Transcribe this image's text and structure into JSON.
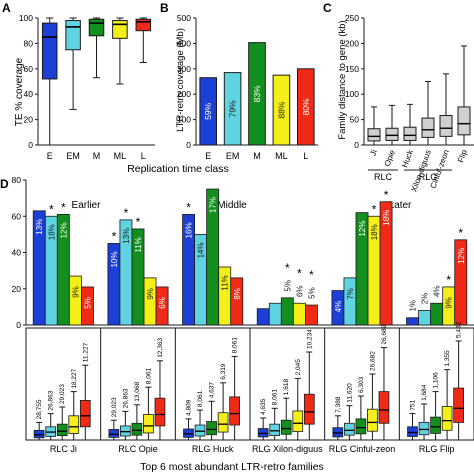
{
  "colors": {
    "E": "#1c3fd6",
    "EM": "#5fd3e0",
    "M": "#138f1f",
    "ML": "#f5ef19",
    "L": "#f02a16",
    "flank": "#d0d0d0",
    "ink": "#1a1a1a"
  },
  "chart_data": [
    {
      "panel": "A",
      "type": "box",
      "ylabel": "TE % coverage",
      "xlabel": "Replication time class",
      "ylim": [
        0,
        100
      ],
      "yticks": [
        0,
        20,
        40,
        60,
        80,
        100
      ],
      "categories": [
        "E",
        "EM",
        "M",
        "ML",
        "L"
      ],
      "boxes": [
        {
          "cat": "E",
          "whisker_low": 0,
          "q1": 52,
          "median": 85,
          "q3": 96,
          "whisker_high": 100
        },
        {
          "cat": "EM",
          "whisker_low": 28,
          "q1": 75,
          "median": 93,
          "q3": 98,
          "whisker_high": 100
        },
        {
          "cat": "M",
          "whisker_low": 53,
          "q1": 86,
          "median": 96,
          "q3": 99,
          "whisker_high": 100
        },
        {
          "cat": "ML",
          "whisker_low": 48,
          "q1": 84,
          "median": 95,
          "q3": 98,
          "whisker_high": 100
        },
        {
          "cat": "L",
          "whisker_low": 65,
          "q1": 90,
          "median": 97,
          "q3": 99,
          "whisker_high": 100
        }
      ]
    },
    {
      "panel": "B",
      "type": "bar",
      "ylabel": "LTR-retro coverage (Mb)",
      "ylim": [
        0,
        500
      ],
      "yticks": [
        0,
        100,
        200,
        300,
        400,
        500
      ],
      "categories": [
        "E",
        "EM",
        "M",
        "ML",
        "L"
      ],
      "values": [
        265,
        285,
        403,
        275,
        300
      ],
      "labels": [
        "59%",
        "79%",
        "83%",
        "88%",
        "80%"
      ]
    },
    {
      "panel": "C",
      "type": "box",
      "ylabel": "Family distance to gene (kb)",
      "ylim": [
        0,
        250
      ],
      "yticks": [
        0,
        50,
        100,
        150,
        200,
        250
      ],
      "categories": [
        "Ji",
        "Opie",
        "Huck",
        "Xilon-diguus",
        "Cinful-zeon",
        "Flip"
      ],
      "groups": [
        {
          "label": "RLC",
          "members": [
            "Ji",
            "Opie"
          ]
        },
        {
          "label": "RLG",
          "members": [
            "Huck",
            "Xilon-diguus",
            "Cinful-zeon"
          ]
        }
      ],
      "boxes": [
        {
          "cat": "Ji",
          "whisker_low": 0,
          "q1": 8,
          "median": 17,
          "q3": 32,
          "whisker_high": 75
        },
        {
          "cat": "Opie",
          "whisker_low": 0,
          "q1": 9,
          "median": 19,
          "q3": 33,
          "whisker_high": 78
        },
        {
          "cat": "Huck",
          "whisker_low": 0,
          "q1": 9,
          "median": 19,
          "q3": 35,
          "whisker_high": 80
        },
        {
          "cat": "Xilon-diguus",
          "whisker_low": 0,
          "q1": 15,
          "median": 30,
          "q3": 53,
          "whisker_high": 125
        },
        {
          "cat": "Cinful-zeon",
          "whisker_low": 0,
          "q1": 17,
          "median": 33,
          "q3": 58,
          "whisker_high": 140
        },
        {
          "cat": "Flip",
          "whisker_low": 0,
          "q1": 20,
          "median": 42,
          "q3": 75,
          "whisker_high": 195
        }
      ]
    },
    {
      "panel": "D",
      "type": "bar",
      "ylim": [
        0,
        80
      ],
      "yticks": [
        0,
        20,
        40,
        60,
        80
      ],
      "classes": [
        "E",
        "EM",
        "M",
        "ML",
        "L"
      ],
      "sections": [
        "Earlier",
        "Middle",
        "Later"
      ],
      "families": [
        {
          "name": "RLC Ji",
          "values": [
            63,
            60,
            61,
            27,
            21
          ],
          "labels": [
            "13%",
            "18%",
            "12%",
            "9%",
            "5%"
          ],
          "stars": [
            false,
            true,
            true,
            false,
            false
          ]
        },
        {
          "name": "RLC Opie",
          "values": [
            45,
            58,
            53,
            26,
            21
          ],
          "labels": [
            "10%",
            "13%",
            "11%",
            "9%",
            "6%"
          ],
          "stars": [
            true,
            true,
            true,
            false,
            false
          ]
        },
        {
          "name": "RLG Huck",
          "values": [
            61,
            50,
            75,
            32,
            26
          ],
          "labels": [
            "16%",
            "14%",
            "17%",
            "11%",
            "8%"
          ],
          "stars": [
            true,
            false,
            false,
            false,
            false
          ]
        },
        {
          "name": "RLG Xilon-diguus",
          "values": [
            9,
            12,
            15,
            12,
            11
          ],
          "labels": [
            "",
            "",
            "5%",
            "6%",
            "5%"
          ],
          "stars": [
            false,
            false,
            true,
            true,
            true
          ]
        },
        {
          "name": "RLG Cinful-zeon",
          "values": [
            19,
            26,
            62,
            60,
            68
          ],
          "labels": [
            "4%",
            "7%",
            "12%",
            "18%",
            "18%"
          ],
          "stars": [
            false,
            false,
            false,
            true,
            true
          ]
        },
        {
          "name": "RLG Flip",
          "values": [
            4,
            8,
            12,
            21,
            47
          ],
          "labels": [
            "1%",
            "2%",
            "4%",
            "9%",
            "12%"
          ],
          "stars": [
            false,
            false,
            false,
            true,
            true
          ]
        }
      ]
    },
    {
      "panel": "D-lower",
      "type": "box",
      "xlabel": "Top 6 most abundant LTR-retro families",
      "ylim": [
        0,
        250
      ],
      "families": [
        {
          "name": "RLC Ji",
          "counts": [
            "28,755",
            "26,863",
            "29,023",
            "18,227",
            "11,227"
          ],
          "boxes": [
            [
              0,
              5,
              12,
              22,
              40
            ],
            [
              0,
              8,
              18,
              30,
              60
            ],
            [
              0,
              10,
              20,
              36,
              75
            ],
            [
              0,
              15,
              30,
              55,
              110
            ],
            [
              0,
              30,
              55,
              90,
              170
            ]
          ]
        },
        {
          "name": "RLC Opie",
          "counts": [
            "29,023",
            "26,863",
            "13,068",
            "8,061",
            "12,363"
          ],
          "boxes": [
            [
              0,
              6,
              13,
              24,
              45
            ],
            [
              0,
              9,
              19,
              32,
              65
            ],
            [
              0,
              11,
              22,
              38,
              80
            ],
            [
              0,
              16,
              32,
              58,
              120
            ],
            [
              0,
              32,
              58,
              95,
              180
            ]
          ]
        },
        {
          "name": "RLG Huck",
          "counts": [
            "4,809",
            "8,061",
            "4,637",
            "6,319",
            "8,061"
          ],
          "boxes": [
            [
              0,
              6,
              14,
              25,
              48
            ],
            [
              0,
              9,
              20,
              34,
              68
            ],
            [
              0,
              12,
              24,
              42,
              88
            ],
            [
              0,
              18,
              36,
              62,
              130
            ],
            [
              0,
              34,
              60,
              98,
              190
            ]
          ]
        },
        {
          "name": "RLG Xilon-diguus",
          "counts": [
            "4,635",
            "8,061",
            "1,618",
            "2,045",
            "10,234"
          ],
          "boxes": [
            [
              0,
              7,
              15,
              26,
              50
            ],
            [
              0,
              10,
              21,
              36,
              72
            ],
            [
              0,
              13,
              26,
              45,
              95
            ],
            [
              0,
              19,
              38,
              66,
              140
            ],
            [
              0,
              36,
              64,
              104,
              200
            ]
          ]
        },
        {
          "name": "RLG Cinful-zeon",
          "counts": [
            "7,388",
            "11,620",
            "6,303",
            "26,682",
            "26,689"
          ],
          "boxes": [
            [
              0,
              7,
              16,
              28,
              55
            ],
            [
              0,
              11,
              22,
              38,
              78
            ],
            [
              0,
              14,
              28,
              48,
              100
            ],
            [
              0,
              20,
              40,
              70,
              150
            ],
            [
              0,
              38,
              68,
              110,
              210
            ]
          ]
        },
        {
          "name": "RLG Flip",
          "counts": [
            "751",
            "1,684",
            "1,106",
            "1,355",
            "5,432"
          ],
          "boxes": [
            [
              0,
              8,
              17,
              30,
              60
            ],
            [
              0,
              12,
              24,
              40,
              82
            ],
            [
              0,
              15,
              30,
              52,
              110
            ],
            [
              0,
              22,
              44,
              76,
              160
            ],
            [
              0,
              40,
              72,
              118,
              225
            ]
          ]
        }
      ]
    }
  ]
}
